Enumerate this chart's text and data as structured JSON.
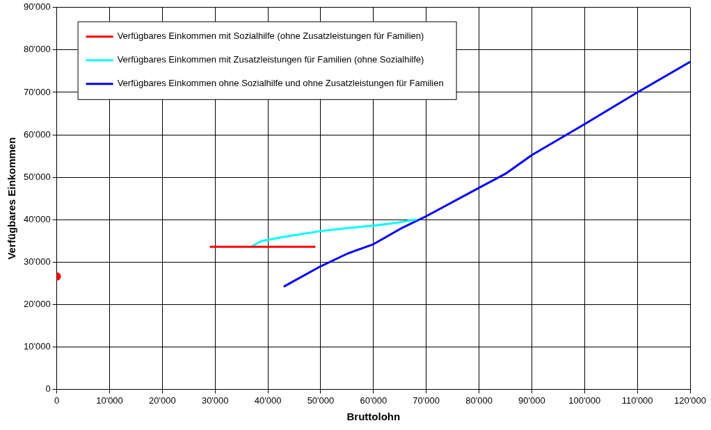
{
  "chart_data": {
    "type": "line",
    "xlabel": "Bruttolohn",
    "ylabel": "Verfügbares Einkommen",
    "xlim": [
      0,
      120000
    ],
    "ylim": [
      0,
      90000
    ],
    "xticks": [
      0,
      {
        "value": 10000,
        "label": "10'000"
      },
      {
        "value": 20000,
        "label": "20'000"
      },
      {
        "value": 30000,
        "label": "30'000"
      },
      {
        "value": 40000,
        "label": "40'000"
      },
      {
        "value": 50000,
        "label": "50'000"
      },
      {
        "value": 60000,
        "label": "60'000"
      },
      {
        "value": 70000,
        "label": "70'000"
      },
      {
        "value": 80000,
        "label": "80'000"
      },
      {
        "value": 90000,
        "label": "90'000"
      },
      {
        "value": 100000,
        "label": "100'000"
      },
      {
        "value": 110000,
        "label": "110'000"
      },
      {
        "value": 120000,
        "label": "120'000"
      }
    ],
    "yticks": [
      0,
      {
        "value": 10000,
        "label": "10'000"
      },
      {
        "value": 20000,
        "label": "20'000"
      },
      {
        "value": 30000,
        "label": "30'000"
      },
      {
        "value": 40000,
        "label": "40'000"
      },
      {
        "value": 50000,
        "label": "50'000"
      },
      {
        "value": 60000,
        "label": "60'000"
      },
      {
        "value": 70000,
        "label": "70'000"
      },
      {
        "value": 80000,
        "label": "80'000"
      },
      {
        "value": 90000,
        "label": "90'000"
      }
    ],
    "grid": true,
    "legend": "top left",
    "marker": "none",
    "line_style": "solid",
    "series": [
      {
        "name": "Verfügbares Einkommen mit Sozialhilfe (ohne Zusatzleistungen für Familien)",
        "color": "#ff0000",
        "x": [
          29000,
          49000
        ],
        "values": [
          33600,
          33600
        ]
      },
      {
        "name": "Verfügbares Einkommen mit Zusatzleistungen für Familien (ohne Sozialhilfe)",
        "color": "#00ffff",
        "x": [
          36800,
          38700,
          42800,
          50000,
          55100,
          60000,
          64200,
          66900,
          68200
        ],
        "values": [
          33600,
          34900,
          35900,
          37300,
          38000,
          38600,
          39200,
          39800,
          40000
        ]
      },
      {
        "name": "Verfügbares Einkommen ohne Sozialhilfe und ohne Zusatzleistungen für Familien",
        "color": "#0000ff",
        "x": [
          43000,
          50000,
          55100,
          60000,
          65200,
          70000,
          80000,
          85000,
          90000,
          100000,
          110000,
          120000
        ],
        "values": [
          24200,
          29000,
          32000,
          34200,
          37900,
          40800,
          47500,
          50800,
          55200,
          62500,
          70000,
          77200
        ]
      },
      {
        "type": "scatter",
        "marker": "circle",
        "color": "#ff0000",
        "x": [
          0
        ],
        "values": [
          26600
        ]
      }
    ]
  }
}
